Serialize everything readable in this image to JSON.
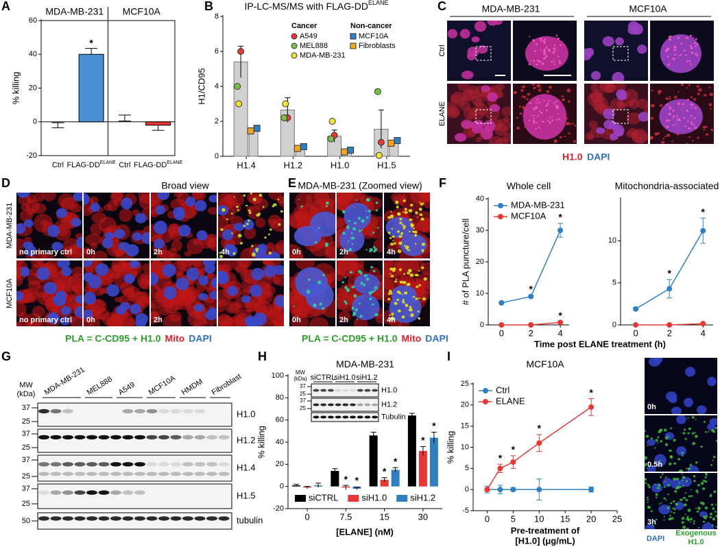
{
  "chart_data": [
    {
      "type": "bar",
      "panel": "A",
      "ylabel": "% killing",
      "groups": [
        "MDA-MB-231",
        "MCF10A"
      ],
      "categories": [
        "Ctrl",
        "FLAG-DD",
        "Ctrl",
        "FLAG-DD"
      ],
      "category_superscripts": [
        null,
        "ELANE",
        null,
        "ELANE"
      ],
      "values": [
        -0.5,
        40,
        0.5,
        -2
      ],
      "errors": [
        3,
        3.5,
        3.5,
        3
      ],
      "colors": [
        null,
        "#4a8fd4",
        null,
        "#e53935"
      ],
      "value_annotations": [
        null,
        "*",
        null,
        null
      ],
      "ylim": [
        -20,
        60
      ],
      "yticks": [
        -20,
        0,
        20,
        40,
        60
      ]
    },
    {
      "type": "bar_points",
      "panel": "B",
      "title": "IP-LC-MS/MS with FLAG-DD",
      "title_superscript": "ELANE",
      "ylabel": "H1/CD95",
      "categories": [
        "H1.4",
        "H1.2",
        "H1.0",
        "H1.5"
      ],
      "ylim": [
        0,
        8
      ],
      "yticks": [
        0,
        2,
        4,
        6,
        8
      ],
      "series": [
        {
          "name": "Cancer",
          "color": "#d0d0d0",
          "marker": "circle",
          "values": [
            5.4,
            2.65,
            1.15,
            1.55
          ],
          "errors": [
            0.9,
            0.7,
            0.35,
            1.1
          ],
          "points": [
            {
              "name": "A549",
              "color": "#e53935",
              "values": [
                6.0,
                2.2,
                1.2,
                0.8
              ]
            },
            {
              "name": "MEL888",
              "color": "#7cc242",
              "values": [
                4.0,
                2.2,
                1.0,
                3.7
              ]
            },
            {
              "name": "MDA-MB-231",
              "color": "#f5e33a",
              "values": [
                3.0,
                3.0,
                2.0,
                0.05
              ]
            }
          ]
        },
        {
          "name": "Non-cancer",
          "color": "#d0d0d0",
          "marker": "square",
          "values": [
            1.5,
            0.5,
            0.3,
            0.8
          ],
          "errors": [
            0.08,
            0.05,
            0.05,
            0.1
          ],
          "points": [
            {
              "name": "MCF10A",
              "color": "#2f7fc1",
              "values": [
                1.6,
                0.55,
                0.35,
                0.9
              ]
            },
            {
              "name": "Fibroblasts",
              "color": "#f5a623",
              "values": [
                1.45,
                0.45,
                0.25,
                0.75
              ]
            }
          ]
        }
      ]
    },
    {
      "type": "line",
      "panel": "F",
      "title": "Whole cell",
      "ylabel": "# of PLA puncture/cell",
      "xlabel": "Time post ELANE treatment (h)",
      "x": [
        0,
        2,
        4
      ],
      "xlim": [
        -0.9,
        4.6
      ],
      "xticks": [
        0,
        2,
        4
      ],
      "ylim": [
        0,
        40
      ],
      "yticks": [
        0,
        10,
        20,
        30,
        40
      ],
      "legend": "upper left",
      "series": [
        {
          "name": "MDA-MB-231",
          "color": "#2f7fc1",
          "values": [
            7,
            9,
            30
          ],
          "errors": [
            0.3,
            0.4,
            2.2
          ],
          "value_annotations": [
            null,
            "*",
            "*"
          ]
        },
        {
          "name": "MCF10A",
          "color": "#e53935",
          "values": [
            0,
            0,
            0.8
          ],
          "errors": [
            0.1,
            0.1,
            0.2
          ],
          "value_annotations": [
            null,
            null,
            "*"
          ]
        }
      ]
    },
    {
      "type": "line",
      "title": "Mitochondria-associated",
      "x": [
        0,
        2,
        4
      ],
      "xlim": [
        -0.9,
        4.6
      ],
      "xticks": [
        0,
        2,
        4
      ],
      "ylim": [
        0,
        15
      ],
      "yticks": [
        0,
        5,
        10
      ],
      "series": [
        {
          "color": "#2f7fc1",
          "values": [
            1.9,
            4.3,
            11.2
          ],
          "errors": [
            0.15,
            1.1,
            1.5
          ],
          "value_annotations": [
            null,
            "*",
            "*"
          ]
        },
        {
          "color": "#e53935",
          "values": [
            0,
            0,
            0.15
          ],
          "errors": [
            0.05,
            0.05,
            0.1
          ],
          "value_annotations": [
            null,
            null,
            null
          ]
        }
      ]
    },
    {
      "type": "grouped_bar",
      "panel": "H",
      "title": "MDA-MB-231",
      "ylabel": "% killing",
      "xlabel": "[ELANE] (nM)",
      "categories": [
        "0",
        "7.5",
        "15",
        "30"
      ],
      "ylim": [
        -20,
        100
      ],
      "yticks": [
        -20,
        0,
        20,
        40,
        60,
        80,
        100
      ],
      "legend": "lower left",
      "series": [
        {
          "name": "siCTRL",
          "color": "#000000",
          "values": [
            1,
            14,
            46,
            64
          ],
          "errors": [
            1,
            2,
            3,
            2
          ],
          "value_annotations": [
            null,
            null,
            null,
            null
          ]
        },
        {
          "name": "siH1.0",
          "color": "#e53935",
          "values": [
            -1,
            -1,
            6,
            32
          ],
          "errors": [
            1,
            2,
            2,
            4
          ],
          "value_annotations": [
            null,
            "*",
            "*",
            "*"
          ]
        },
        {
          "name": "siH1.2",
          "color": "#2f7fc1",
          "values": [
            1,
            -2,
            15,
            44
          ],
          "errors": [
            2,
            1,
            2,
            5
          ],
          "value_annotations": [
            null,
            "*",
            "*",
            "*"
          ]
        }
      ],
      "inset": {
        "mw_header": [
          "MW",
          "(kDa)"
        ],
        "lanes": [
          "siCTRL",
          "siH1.0",
          "siH1.2"
        ],
        "blots": [
          {
            "name": "H1.0",
            "mw": [
              "37",
              "25"
            ]
          },
          {
            "name": "H1.2",
            "mw": [
              "37",
              "25"
            ]
          },
          {
            "name": "Tubulin",
            "mw": []
          }
        ]
      }
    },
    {
      "type": "line",
      "panel": "I",
      "title": "MCF10A",
      "ylabel": "% killing",
      "xlabel": [
        "Pre-treatment of",
        "[H1.0] (μg/mL)"
      ],
      "x": [
        0,
        2.5,
        5,
        10,
        20
      ],
      "xlim": [
        -2.7,
        25
      ],
      "xticks": [
        0,
        5,
        10,
        15,
        20,
        25
      ],
      "ylim": [
        -5,
        25
      ],
      "yticks": [
        -5,
        0,
        5,
        10,
        15,
        20,
        25
      ],
      "legend": "upper left",
      "series": [
        {
          "name": "Ctrl",
          "color": "#2f7fc1",
          "values": [
            0,
            0,
            0,
            0,
            0
          ],
          "errors": [
            0.8,
            1,
            0.4,
            2.5,
            0.6
          ],
          "value_annotations": [
            null,
            null,
            null,
            null,
            null
          ]
        },
        {
          "name": "ELANE",
          "color": "#e53935",
          "values": [
            0,
            5,
            6.5,
            11,
            19.5
          ],
          "errors": [
            0.4,
            1,
            1.5,
            2,
            2
          ],
          "value_annotations": [
            null,
            "*",
            "*",
            "*",
            "*"
          ]
        }
      ]
    }
  ],
  "panel_c": {
    "label": "C",
    "columns": [
      "MDA-MB-231",
      "MCF10A"
    ],
    "rows": [
      "Ctrl",
      "ELANE"
    ],
    "stain_labels": [
      "H1.0",
      "DAPI"
    ]
  },
  "panel_d": {
    "label": "D",
    "title": "Broad view",
    "rows": [
      "MDA-MB-231",
      "MCF10A"
    ],
    "image_labels": [
      [
        "no primary ctrl",
        "0h",
        "2h",
        "4h"
      ],
      [
        "no primary ctrl",
        "0h",
        "2h"
      ]
    ],
    "stain_labels": [
      "PLA = C-CD95 + H1.0",
      "Mito",
      "DAPI"
    ]
  },
  "panel_e": {
    "label": "E",
    "title": "MDA-MB-231 (Zoomed view)",
    "image_labels": [
      [
        "0h",
        "2h",
        "4h"
      ],
      [
        "0h",
        "2h",
        "4h"
      ]
    ],
    "stain_labels": [
      "PLA = C-CD95 + H1.0",
      "Mito",
      "DAPI"
    ]
  },
  "panel_g": {
    "label": "G",
    "mw_header": [
      "MW",
      "(kDa)"
    ],
    "samples": [
      "MDA-MB-231",
      "MEL888",
      "A549",
      "MCF10A",
      "HMDM",
      "Fibroblast"
    ],
    "blots": [
      {
        "name": "H1.0",
        "mw": [
          "37",
          "25"
        ]
      },
      {
        "name": "H1.2",
        "mw": [
          "37",
          "25"
        ]
      },
      {
        "name": "H1.4",
        "mw": [
          "37",
          "25"
        ]
      },
      {
        "name": "H1.5",
        "mw": [
          "37",
          "25"
        ]
      },
      {
        "name": "tubulin",
        "mw": [
          "50"
        ]
      }
    ]
  },
  "panel_i_images": {
    "image_labels": [
      "0h",
      "0.5h",
      "3h"
    ],
    "stain_labels": [
      "DAPI",
      "Exogenous",
      "H1.0"
    ]
  }
}
